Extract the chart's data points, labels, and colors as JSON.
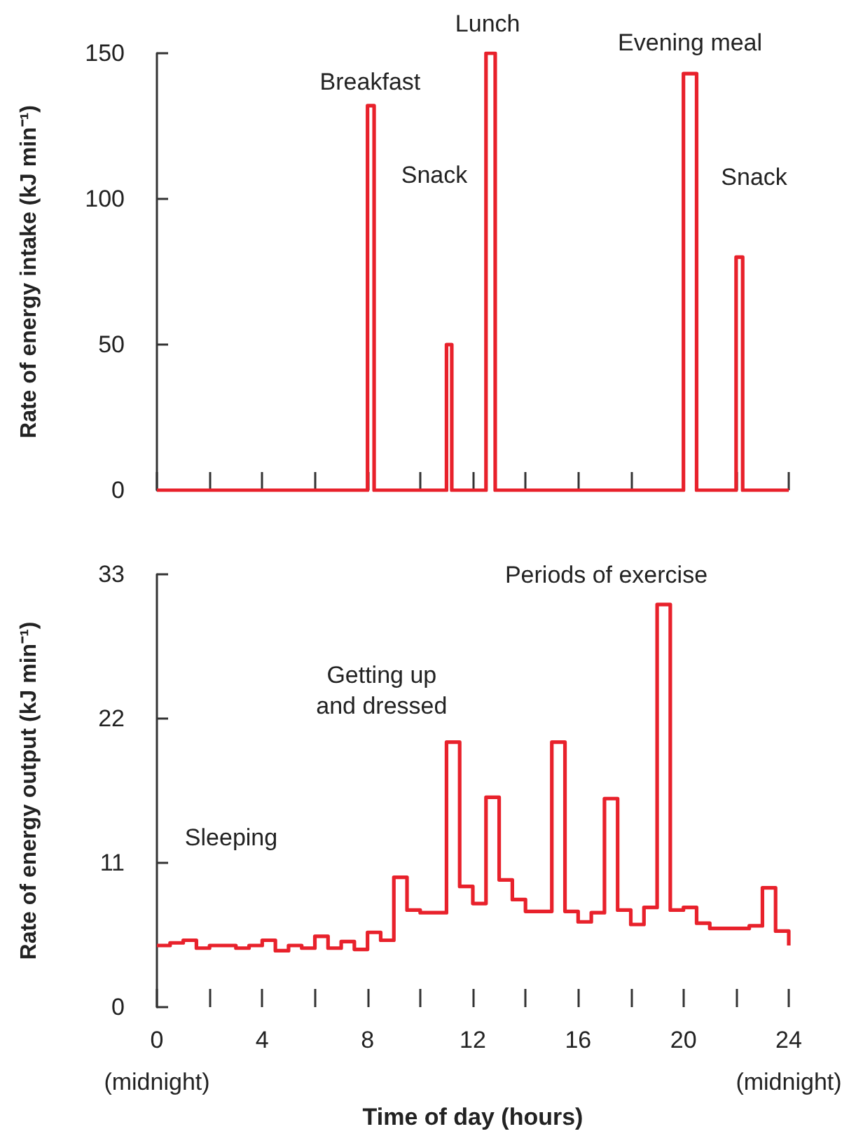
{
  "chart_data": [
    {
      "type": "step",
      "ylabel": "Rate of energy intake (kJ min⁻¹)",
      "xlim": [
        0,
        24
      ],
      "ylim": [
        0,
        150
      ],
      "yticks": [
        0,
        50,
        100,
        150
      ],
      "xticks": [
        {
          "value": 0,
          "label": null
        },
        {
          "value": 2,
          "label": null
        },
        {
          "value": 4,
          "label": null
        },
        {
          "value": 6,
          "label": null
        },
        {
          "value": 8,
          "label": null
        },
        {
          "value": 10,
          "label": null
        },
        {
          "value": 12,
          "label": null
        },
        {
          "value": 14,
          "label": null
        },
        {
          "value": 16,
          "label": null
        },
        {
          "value": 18,
          "label": null
        },
        {
          "value": 20,
          "label": null
        },
        {
          "value": 22,
          "label": null
        },
        {
          "value": 24,
          "label": null
        }
      ],
      "tick_labels": "y",
      "grid": false,
      "series": [
        {
          "color": "#e8212b",
          "x": [
            0,
            8,
            8.25,
            11,
            11.2,
            12.5,
            12.85,
            20,
            20.5,
            22,
            22.25,
            24
          ],
          "values": [
            0,
            132,
            0,
            50,
            0,
            150,
            0,
            143,
            0,
            80,
            0,
            0
          ]
        }
      ],
      "annotations": [
        {
          "text": "Breakfast",
          "x": 8.1,
          "y": 132
        },
        "Snack",
        {
          "text": "Lunch",
          "x": 12.67,
          "y": 150
        },
        {
          "text": "Evening meal",
          "x": 20.25,
          "y": 143
        },
        {
          "text": "Snack",
          "x": 22.1,
          "y": 80
        }
      ]
    },
    {
      "type": "step",
      "xlabel": "Time of day (hours)",
      "ylabel": "Rate of energy output (kJ min⁻¹)",
      "xlim": [
        0,
        24
      ],
      "ylim": [
        0,
        33
      ],
      "yticks": [
        0,
        11,
        22,
        33
      ],
      "xticks": [
        {
          "value": 0,
          "label": "0\n\n(midnight)"
        },
        {
          "value": 2,
          "label": null
        },
        {
          "value": 4,
          "label": "4"
        },
        {
          "value": 6,
          "label": null
        },
        {
          "value": 8,
          "label": "8"
        },
        {
          "value": 10,
          "label": null
        },
        {
          "value": 12,
          "label": "12"
        },
        {
          "value": 14,
          "label": null
        },
        {
          "value": 16,
          "label": "16"
        },
        {
          "value": 18,
          "label": null
        },
        {
          "value": 20,
          "label": "20"
        },
        {
          "value": 22,
          "label": null
        },
        {
          "value": 24,
          "label": "24\n\n(midnight)"
        }
      ],
      "grid": false,
      "series": [
        {
          "color": "#e8212b",
          "x": [
            0,
            0.5,
            1,
            1.5,
            2,
            3,
            3.5,
            4,
            4.5,
            5,
            5.5,
            6,
            6.5,
            7,
            7.5,
            8,
            8.5,
            9,
            9.5,
            10,
            11,
            11.5,
            12,
            12.5,
            13,
            13.5,
            14,
            15,
            15.5,
            16,
            16.5,
            17,
            17.5,
            18,
            18.5,
            19,
            19.5,
            20,
            20.5,
            21,
            22.5,
            23,
            23.5,
            24
          ],
          "values": [
            4.7,
            4.9,
            5.1,
            4.5,
            4.7,
            4.5,
            4.7,
            5.1,
            4.3,
            4.7,
            4.5,
            5.4,
            4.5,
            5.0,
            4.4,
            5.7,
            5.1,
            9.9,
            7.4,
            7.2,
            20.2,
            9.2,
            7.9,
            16.0,
            9.7,
            8.2,
            7.3,
            20.2,
            7.3,
            6.5,
            7.2,
            15.9,
            7.4,
            6.3,
            7.6,
            30.7,
            7.4,
            7.6,
            6.4,
            6.0,
            6.2,
            9.1,
            5.8,
            4.7
          ]
        }
      ],
      "annotations": [
        "Sleeping",
        {
          "text": "Getting up\nand dressed",
          "x": 11.25,
          "y": 20.2
        },
        {
          "text": "Periods of exercise",
          "x": 19.25,
          "y": 30.7
        }
      ]
    }
  ]
}
